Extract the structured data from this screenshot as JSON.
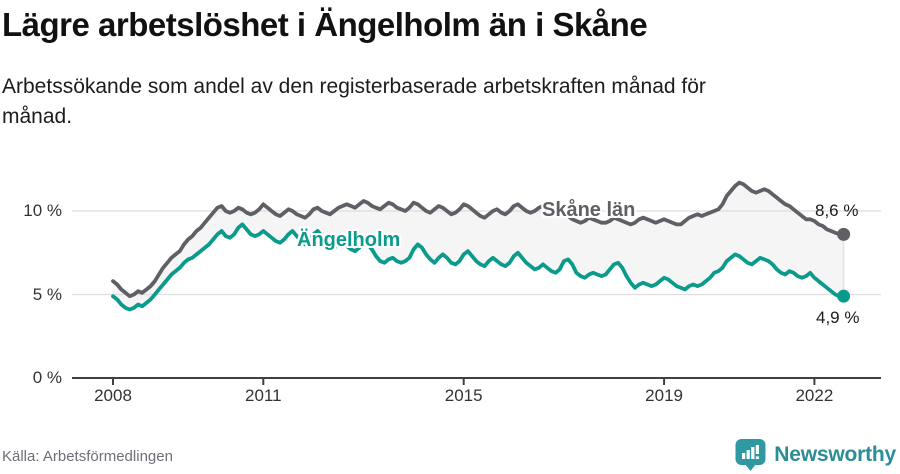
{
  "header": {
    "title": "Lägre arbetslöshet i Ängelholm än i Skåne",
    "subtitle_lines": [
      "Arbetssökande som andel av den registerbaserade arbetskraften månad för",
      "månad."
    ]
  },
  "footer": {
    "source": "Källa: Arbetsförmedlingen",
    "brand": "Newsworthy"
  },
  "colors": {
    "skane_line": "#5f5f66",
    "angelholm_line": "#0b9b8d",
    "band_fill": "#f5f5f5",
    "band_edge": "#e3e3e3",
    "grid": "#dddddd",
    "axis": "#3f3f46",
    "brand_teal": "#2f99a1"
  },
  "chart_data": {
    "type": "line",
    "title": "Lägre arbetslöshet i Ängelholm än i Skåne",
    "unit": "%",
    "x_start": "2008-01",
    "x_interval": "month",
    "x_end": "2022-08",
    "grid": "on",
    "x_tick_labels": [
      "2008",
      "2011",
      "2015",
      "2019",
      "2022"
    ],
    "x_tick_years": [
      2008,
      2011,
      2015,
      2019,
      2022
    ],
    "y_ticks": [
      {
        "value": 0,
        "label": "0 %"
      },
      {
        "value": 5,
        "label": "5 %"
      },
      {
        "value": 10,
        "label": "10 %"
      }
    ],
    "ylim": [
      0,
      12.5
    ],
    "series": [
      {
        "name": "Skåne län",
        "color": "#5f5f66",
        "end_label": "8,6 %",
        "end_value": 8.6,
        "values": [
          5.8,
          5.6,
          5.3,
          5.1,
          4.9,
          5.0,
          5.2,
          5.1,
          5.3,
          5.5,
          5.8,
          6.2,
          6.6,
          6.9,
          7.2,
          7.4,
          7.6,
          8.0,
          8.3,
          8.5,
          8.8,
          9.0,
          9.3,
          9.6,
          9.9,
          10.2,
          10.3,
          10.0,
          9.9,
          10.0,
          10.2,
          10.1,
          9.9,
          9.8,
          9.9,
          10.1,
          10.4,
          10.2,
          10.0,
          9.8,
          9.7,
          9.9,
          10.1,
          10.0,
          9.8,
          9.7,
          9.6,
          9.8,
          10.1,
          10.2,
          10.0,
          9.9,
          9.8,
          10.0,
          10.2,
          10.3,
          10.4,
          10.3,
          10.2,
          10.4,
          10.6,
          10.5,
          10.3,
          10.2,
          10.1,
          10.3,
          10.5,
          10.4,
          10.2,
          10.1,
          10.0,
          10.2,
          10.5,
          10.4,
          10.2,
          10.0,
          9.9,
          10.1,
          10.3,
          10.2,
          10.0,
          9.8,
          9.9,
          10.1,
          10.4,
          10.3,
          10.1,
          9.9,
          9.7,
          9.6,
          9.8,
          10.0,
          10.1,
          9.9,
          9.8,
          10.0,
          10.3,
          10.4,
          10.2,
          10.0,
          9.9,
          10.0,
          10.2,
          10.3,
          10.4,
          10.2,
          10.0,
          9.9,
          9.8,
          9.7,
          9.5,
          9.4,
          9.3,
          9.4,
          9.6,
          9.5,
          9.4,
          9.3,
          9.3,
          9.4,
          9.6,
          9.5,
          9.4,
          9.3,
          9.2,
          9.3,
          9.5,
          9.6,
          9.5,
          9.4,
          9.3,
          9.4,
          9.5,
          9.4,
          9.3,
          9.2,
          9.2,
          9.4,
          9.6,
          9.7,
          9.8,
          9.7,
          9.8,
          9.9,
          10.0,
          10.1,
          10.4,
          10.9,
          11.2,
          11.5,
          11.7,
          11.6,
          11.4,
          11.2,
          11.1,
          11.2,
          11.3,
          11.2,
          11.0,
          10.8,
          10.6,
          10.4,
          10.3,
          10.1,
          9.9,
          9.7,
          9.5,
          9.5,
          9.4,
          9.2,
          9.1,
          8.9,
          8.8,
          8.7,
          8.6,
          8.6
        ]
      },
      {
        "name": "Ängelholm",
        "color": "#0b9b8d",
        "end_label": "4,9 %",
        "end_value": 4.9,
        "values": [
          4.9,
          4.7,
          4.4,
          4.2,
          4.1,
          4.2,
          4.4,
          4.3,
          4.5,
          4.7,
          5.0,
          5.3,
          5.6,
          5.9,
          6.2,
          6.4,
          6.6,
          6.9,
          7.1,
          7.2,
          7.4,
          7.6,
          7.8,
          8.0,
          8.3,
          8.6,
          8.8,
          8.5,
          8.4,
          8.6,
          9.0,
          9.2,
          8.9,
          8.6,
          8.5,
          8.6,
          8.8,
          8.6,
          8.4,
          8.2,
          8.1,
          8.3,
          8.6,
          8.8,
          8.5,
          8.2,
          8.0,
          8.2,
          8.6,
          8.8,
          8.5,
          8.2,
          8.0,
          7.8,
          8.0,
          8.1,
          7.9,
          7.7,
          7.6,
          7.8,
          8.1,
          8.0,
          7.7,
          7.3,
          7.0,
          6.9,
          7.1,
          7.2,
          7.0,
          6.9,
          7.0,
          7.2,
          7.7,
          8.0,
          7.8,
          7.4,
          7.1,
          6.9,
          7.2,
          7.4,
          7.2,
          6.9,
          6.8,
          7.0,
          7.4,
          7.6,
          7.3,
          7.0,
          6.8,
          6.7,
          7.0,
          7.2,
          7.0,
          6.8,
          6.7,
          6.9,
          7.3,
          7.5,
          7.2,
          6.9,
          6.7,
          6.5,
          6.6,
          6.8,
          6.6,
          6.4,
          6.3,
          6.5,
          7.0,
          7.1,
          6.8,
          6.3,
          6.1,
          6.0,
          6.2,
          6.3,
          6.2,
          6.1,
          6.2,
          6.5,
          6.8,
          6.9,
          6.6,
          6.1,
          5.7,
          5.4,
          5.6,
          5.7,
          5.6,
          5.5,
          5.6,
          5.8,
          6.0,
          5.9,
          5.7,
          5.5,
          5.4,
          5.3,
          5.5,
          5.6,
          5.5,
          5.6,
          5.8,
          6.0,
          6.3,
          6.4,
          6.6,
          7.0,
          7.2,
          7.4,
          7.3,
          7.1,
          6.9,
          6.8,
          7.0,
          7.2,
          7.1,
          7.0,
          6.8,
          6.5,
          6.3,
          6.2,
          6.4,
          6.3,
          6.1,
          6.0,
          6.1,
          6.3,
          6.0,
          5.8,
          5.6,
          5.4,
          5.2,
          5.0,
          4.9,
          4.9
        ]
      }
    ],
    "legend_position": "inline-labels"
  }
}
